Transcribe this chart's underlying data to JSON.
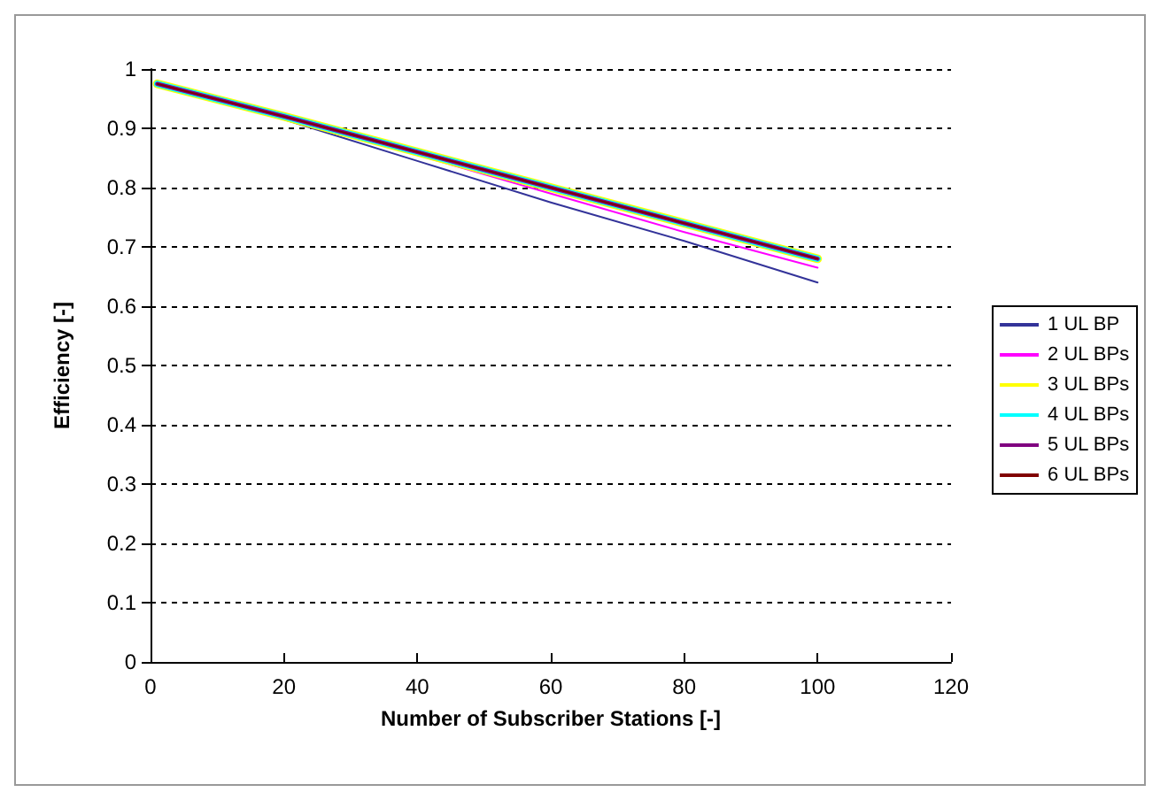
{
  "chart_data": {
    "type": "line",
    "xlabel": "Number of Subscriber Stations [-]",
    "ylabel": "Efficiency [-]",
    "x": [
      1,
      20,
      40,
      60,
      80,
      100
    ],
    "series": [
      {
        "name": "1 UL BP",
        "color": "#333399",
        "values": [
          0.975,
          0.915,
          0.845,
          0.775,
          0.71,
          0.64
        ]
      },
      {
        "name": "2 UL BPs",
        "color": "#ff00ff",
        "values": [
          0.975,
          0.92,
          0.855,
          0.79,
          0.725,
          0.665
        ]
      },
      {
        "name": "3 UL BPs",
        "color": "#ffff00",
        "values": [
          0.975,
          0.92,
          0.86,
          0.8,
          0.74,
          0.68
        ]
      },
      {
        "name": "4 UL BPs",
        "color": "#00ffff",
        "values": [
          0.975,
          0.92,
          0.86,
          0.8,
          0.74,
          0.68
        ]
      },
      {
        "name": "5 UL BPs",
        "color": "#800080",
        "values": [
          0.975,
          0.92,
          0.86,
          0.8,
          0.74,
          0.68
        ]
      },
      {
        "name": "6 UL BPs",
        "color": "#800000",
        "values": [
          0.975,
          0.92,
          0.86,
          0.8,
          0.74,
          0.68
        ]
      }
    ],
    "xlim": [
      0,
      120
    ],
    "xticks": [
      0,
      20,
      40,
      60,
      80,
      100,
      120
    ],
    "ylim": [
      0,
      1
    ],
    "yticks": [
      0,
      0.1,
      0.2,
      0.3,
      0.4,
      0.5,
      0.6,
      0.7,
      0.8,
      0.9,
      1
    ],
    "grid": "y",
    "legend": "right",
    "marker": "none"
  }
}
